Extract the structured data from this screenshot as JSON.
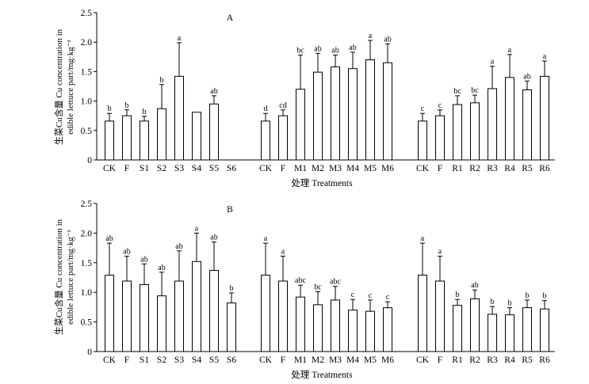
{
  "chart_data": [
    {
      "type": "bar",
      "panel_label": "A",
      "xlabel": "处理 Treatments",
      "ylabel": [
        "生菜Cu含量 Cu concentration in",
        "edible lettuce part/mg·kg⁻¹"
      ],
      "ylim": [
        0,
        2.5
      ],
      "yticks": [
        "0",
        "0.5",
        "1.0",
        "1.5",
        "2.0",
        "2.5"
      ],
      "groups": [
        {
          "categories": [
            "CK",
            "F",
            "S1",
            "S2",
            "S3",
            "S4",
            "S5",
            "S6"
          ],
          "values": [
            0.66,
            0.75,
            0.66,
            0.87,
            1.42,
            0.81,
            0.95,
            null
          ],
          "errors": [
            0.13,
            0.1,
            0.08,
            0.41,
            0.57,
            0,
            0.14,
            null
          ],
          "labels": [
            "b",
            "b",
            "b",
            "b",
            "a",
            "",
            "ab",
            ""
          ]
        },
        {
          "categories": [
            "CK",
            "F",
            "M1",
            "M2",
            "M3",
            "M4",
            "M5",
            "M6"
          ],
          "values": [
            0.66,
            0.75,
            1.2,
            1.49,
            1.58,
            1.55,
            1.7,
            1.65
          ],
          "errors": [
            0.13,
            0.1,
            0.58,
            0.32,
            0.2,
            0.28,
            0.33,
            0.32
          ],
          "labels": [
            "d",
            "cd",
            "bc",
            "ab",
            "ab",
            "ab",
            "a",
            "ab"
          ]
        },
        {
          "categories": [
            "CK",
            "F",
            "R1",
            "R2",
            "R3",
            "R4",
            "R5",
            "R6"
          ],
          "values": [
            0.66,
            0.75,
            0.94,
            0.97,
            1.21,
            1.4,
            1.19,
            1.42
          ],
          "errors": [
            0.13,
            0.1,
            0.15,
            0.13,
            0.38,
            0.39,
            0.15,
            0.26
          ],
          "labels": [
            "c",
            "c",
            "bc",
            "bc",
            "a",
            "a",
            "ab",
            "a"
          ]
        }
      ]
    },
    {
      "type": "bar",
      "panel_label": "B",
      "xlabel": "处理 Treatments",
      "ylabel": [
        "生菜Cu含量 Cu concentration in",
        "edible lettuce part/mg·kg⁻¹"
      ],
      "ylim": [
        0,
        2.5
      ],
      "yticks": [
        "0",
        "0.5",
        "1.0",
        "1.5",
        "2.0",
        "2.5"
      ],
      "groups": [
        {
          "categories": [
            "CK",
            "F",
            "S1",
            "S2",
            "S3",
            "S4",
            "S5",
            "S6"
          ],
          "values": [
            1.29,
            1.19,
            1.13,
            0.94,
            1.19,
            1.52,
            1.37,
            0.82
          ],
          "errors": [
            0.54,
            0.42,
            0.35,
            0.4,
            0.51,
            0.48,
            0.48,
            0.17
          ],
          "labels": [
            "ab",
            "ab",
            "ab",
            "ab",
            "ab",
            "a",
            "ab",
            "b"
          ]
        },
        {
          "categories": [
            "CK",
            "F",
            "M1",
            "M2",
            "M3",
            "M4",
            "M5",
            "M6"
          ],
          "values": [
            1.29,
            1.19,
            0.92,
            0.79,
            0.87,
            0.7,
            0.68,
            0.74
          ],
          "errors": [
            0.54,
            0.42,
            0.2,
            0.22,
            0.23,
            0.18,
            0.19,
            0.1
          ],
          "labels": [
            "a",
            "a",
            "abc",
            "bc",
            "abc",
            "c",
            "c",
            "c"
          ]
        },
        {
          "categories": [
            "CK",
            "F",
            "R1",
            "R2",
            "R3",
            "R4",
            "R5",
            "R6"
          ],
          "values": [
            1.29,
            1.19,
            0.78,
            0.89,
            0.63,
            0.62,
            0.74,
            0.72
          ],
          "errors": [
            0.54,
            0.42,
            0.1,
            0.15,
            0.13,
            0.12,
            0.13,
            0.14
          ],
          "labels": [
            "a",
            "a",
            "b",
            "ab",
            "b",
            "b",
            "b",
            "b"
          ]
        }
      ]
    }
  ]
}
